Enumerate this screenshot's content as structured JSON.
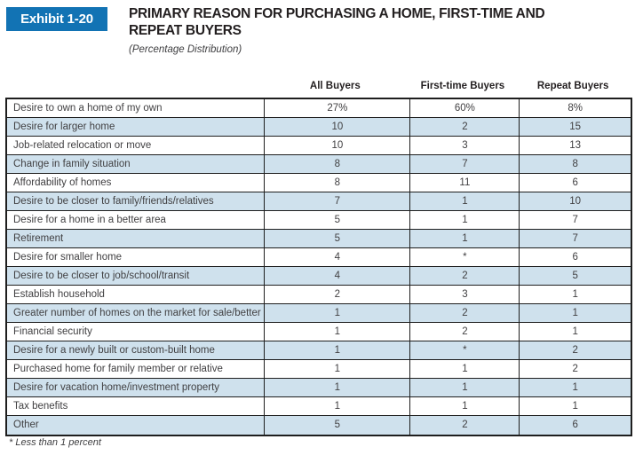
{
  "exhibit": {
    "badge": "Exhibit 1-20",
    "title_line1": "PRIMARY REASON FOR PURCHASING A HOME, FIRST-TIME AND",
    "title_line2": "REPEAT BUYERS",
    "subtitle": "(Percentage Distribution)"
  },
  "table": {
    "columns": [
      "All Buyers",
      "First-time Buyers",
      "Repeat Buyers"
    ],
    "rows": [
      {
        "label": "Desire to own a home of my own",
        "all": "27%",
        "first": "60%",
        "repeat": "8%"
      },
      {
        "label": "Desire for larger home",
        "all": "10",
        "first": "2",
        "repeat": "15"
      },
      {
        "label": "Job-related relocation or move",
        "all": "10",
        "first": "3",
        "repeat": "13"
      },
      {
        "label": "Change in family situation",
        "all": "8",
        "first": "7",
        "repeat": "8"
      },
      {
        "label": "Affordability of homes",
        "all": "8",
        "first": "11",
        "repeat": "6"
      },
      {
        "label": "Desire to be closer to family/friends/relatives",
        "all": "7",
        "first": "1",
        "repeat": "10"
      },
      {
        "label": "Desire for a home in a better area",
        "all": "5",
        "first": "1",
        "repeat": "7"
      },
      {
        "label": "Retirement",
        "all": "5",
        "first": "1",
        "repeat": "7"
      },
      {
        "label": "Desire for smaller home",
        "all": "4",
        "first": "*",
        "repeat": "6"
      },
      {
        "label": "Desire to be closer to job/school/transit",
        "all": "4",
        "first": "2",
        "repeat": "5"
      },
      {
        "label": "Establish household",
        "all": "2",
        "first": "3",
        "repeat": "1"
      },
      {
        "label": "Greater number of homes on the market for sale/better choice",
        "all": "1",
        "first": "2",
        "repeat": "1"
      },
      {
        "label": "Financial security",
        "all": "1",
        "first": "2",
        "repeat": "1"
      },
      {
        "label": "Desire for a newly built or custom-built home",
        "all": "1",
        "first": "*",
        "repeat": "2"
      },
      {
        "label": "Purchased home for family member or relative",
        "all": "1",
        "first": "1",
        "repeat": "2"
      },
      {
        "label": "Desire for vacation home/investment property",
        "all": "1",
        "first": "1",
        "repeat": "1"
      },
      {
        "label": "Tax benefits",
        "all": "1",
        "first": "1",
        "repeat": "1"
      },
      {
        "label": "Other",
        "all": "5",
        "first": "2",
        "repeat": "6"
      }
    ]
  },
  "footnote": "* Less than 1 percent",
  "colors": {
    "badge_blue": "#1273b4",
    "row_blue": "#cfe1ed",
    "border": "#1e1e1e",
    "title_ink": "#231f20",
    "cell_ink": "#414042"
  },
  "chart_data": {
    "type": "table",
    "title": "Primary Reason for Purchasing a Home, First-time and Repeat Buyers (Percentage Distribution)",
    "categories": [
      "Desire to own a home of my own",
      "Desire for larger home",
      "Job-related relocation or move",
      "Change in family situation",
      "Affordability of homes",
      "Desire to be closer to family/friends/relatives",
      "Desire for a home in a better area",
      "Retirement",
      "Desire for smaller home",
      "Desire to be closer to job/school/transit",
      "Establish household",
      "Greater number of homes on the market for sale/better choice",
      "Financial security",
      "Desire for a newly built or custom-built home",
      "Purchased home for family member or relative",
      "Desire for vacation home/investment property",
      "Tax benefits",
      "Other"
    ],
    "series": [
      {
        "name": "All Buyers",
        "values": [
          27,
          10,
          10,
          8,
          8,
          7,
          5,
          5,
          4,
          4,
          2,
          1,
          1,
          1,
          1,
          1,
          1,
          5
        ]
      },
      {
        "name": "First-time Buyers",
        "values": [
          60,
          2,
          3,
          7,
          11,
          1,
          1,
          1,
          "*",
          2,
          3,
          2,
          2,
          "*",
          1,
          1,
          1,
          2
        ]
      },
      {
        "name": "Repeat Buyers",
        "values": [
          8,
          15,
          13,
          8,
          6,
          10,
          7,
          7,
          6,
          5,
          1,
          1,
          1,
          2,
          2,
          1,
          1,
          6
        ]
      }
    ],
    "annotations": [
      "* Less than 1 percent"
    ]
  }
}
